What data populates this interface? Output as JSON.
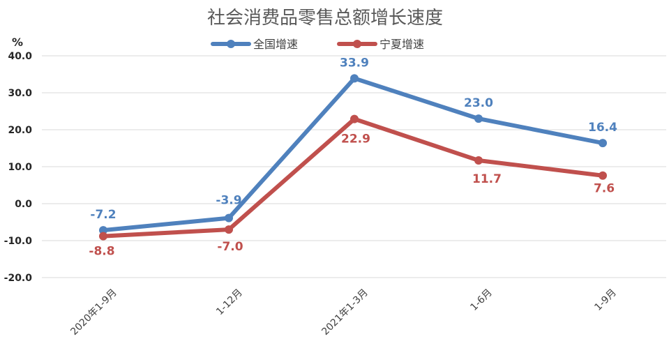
{
  "chart_data": {
    "type": "line",
    "title": "社会消费品零售总额增长速度",
    "ylabel": "%",
    "xlabel": "",
    "categories": [
      "2020年1-9月",
      "1-12月",
      "2021年1-3月",
      "1-6月",
      "1-9月"
    ],
    "ylim": [
      -20,
      40
    ],
    "yticks": [
      "40.0",
      "30.0",
      "20.0",
      "10.0",
      "0.0",
      "-10.0",
      "-20.0"
    ],
    "grid": true,
    "legend_position": "top-center",
    "series": [
      {
        "name": "全国增速",
        "color": "#4F81BD",
        "values": [
          -7.2,
          -3.9,
          33.9,
          23.0,
          16.4
        ],
        "labels": [
          "-7.2",
          "-3.9",
          "33.9",
          "23.0",
          "16.4"
        ]
      },
      {
        "name": "宁夏增速",
        "color": "#C0504D",
        "values": [
          -8.8,
          -7.0,
          22.9,
          11.7,
          7.6
        ],
        "labels": [
          "-8.8",
          "-7.0",
          "22.9",
          "11.7",
          "7.6"
        ]
      }
    ]
  }
}
